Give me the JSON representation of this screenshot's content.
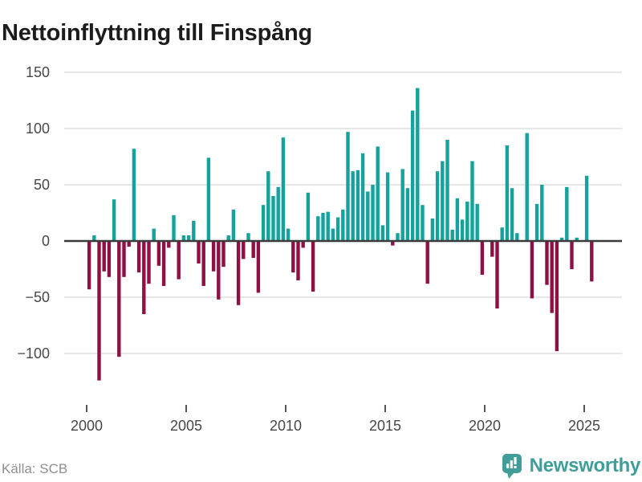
{
  "header": {
    "title": "Nettoinflyttning till Finspång"
  },
  "footer": {
    "source": "Källa: SCB",
    "brand": "Newsworthy"
  },
  "chart_data": {
    "type": "bar",
    "title": "Nettoinflyttning till Finspång",
    "x_axis": {
      "unit": "quarter",
      "start": "2000-Q1",
      "end": "2025-Q2",
      "tick_labels": [
        "2000",
        "2005",
        "2010",
        "2015",
        "2020",
        "2025"
      ]
    },
    "y_axis": {
      "ticks": [
        150,
        100,
        50,
        0,
        -50,
        -100
      ],
      "range": [
        -135,
        155
      ]
    },
    "grid": true,
    "legend": false,
    "colors": {
      "positive": "#16a29c",
      "negative": "#8e1045",
      "axis": "#3a3a3a",
      "gridline": "#e6e6e6",
      "tick_text": "#474747"
    },
    "values": [
      -43,
      5,
      -124,
      -27,
      -32,
      37,
      -103,
      -32,
      -5,
      82,
      -28,
      -65,
      -38,
      11,
      -22,
      -40,
      -6,
      23,
      -34,
      5,
      5,
      18,
      -20,
      -40,
      74,
      -27,
      -52,
      -23,
      5,
      28,
      -57,
      -16,
      7,
      -15,
      -46,
      32,
      62,
      40,
      48,
      92,
      11,
      -28,
      -35,
      -6,
      43,
      -45,
      22,
      25,
      26,
      11,
      21,
      28,
      97,
      62,
      63,
      78,
      44,
      50,
      84,
      14,
      61,
      -4,
      7,
      64,
      47,
      116,
      136,
      32,
      -38,
      20,
      62,
      71,
      90,
      10,
      38,
      19,
      35,
      71,
      33,
      -30,
      0,
      -14,
      -60,
      12,
      85,
      47,
      7,
      0,
      96,
      -51,
      33,
      50,
      -39,
      -64,
      -98,
      3,
      48,
      -25,
      3,
      0,
      58,
      -36
    ]
  }
}
